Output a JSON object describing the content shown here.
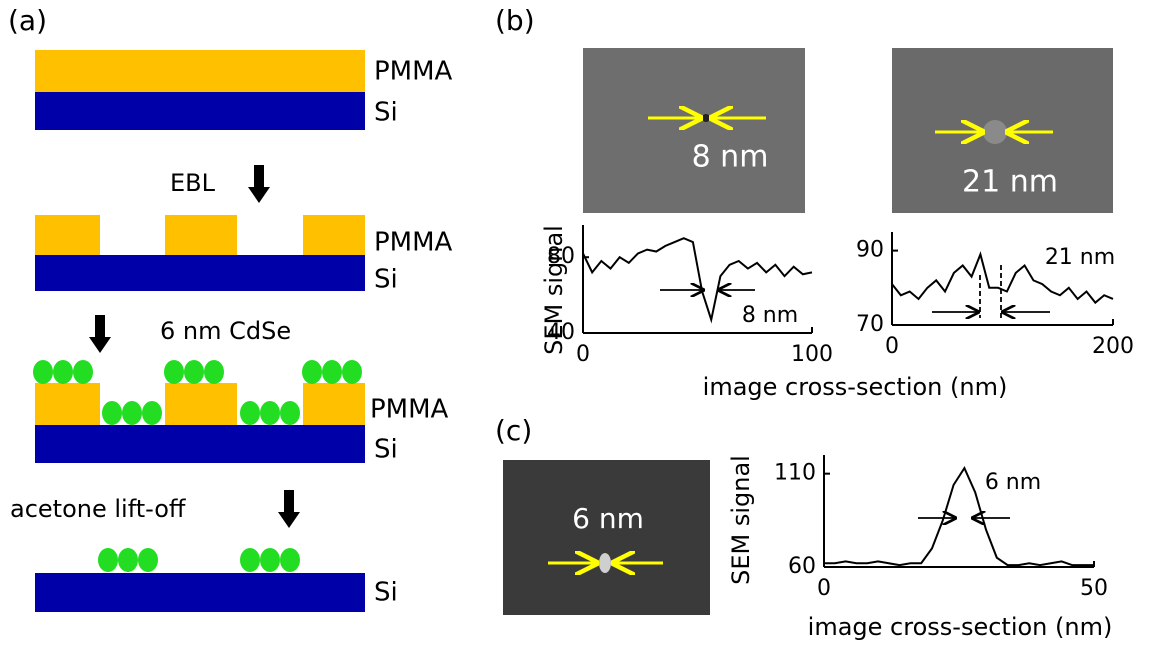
{
  "panel_labels": [
    "(a)",
    "(b)",
    "(c)"
  ],
  "diagram": {
    "stages": [
      {
        "layers": [
          "PMMA",
          "Si"
        ]
      },
      {
        "step": "EBL",
        "layers": [
          "PMMA",
          "Si"
        ]
      },
      {
        "step": "6 nm CdSe",
        "layers": [
          "PMMA",
          "Si"
        ]
      },
      {
        "step": "acetone lift-off",
        "layers": [
          "Si"
        ]
      }
    ]
  },
  "images": [
    {
      "label": "8 nm"
    },
    {
      "label": "21 nm"
    },
    {
      "label": "6 nm"
    }
  ],
  "chart_data": [
    {
      "type": "line",
      "ylabel": "SEM signal",
      "xlabel": "image cross-section (nm)",
      "annotation": "8 nm",
      "color": "#000000",
      "x": [
        0,
        4,
        8,
        12,
        16,
        20,
        24,
        28,
        32,
        36,
        40,
        44,
        48,
        52,
        56,
        60,
        64,
        68,
        72,
        76,
        80,
        84,
        88,
        92,
        96,
        100
      ],
      "series": [
        {
          "values": [
            82,
            72,
            78,
            74,
            80,
            77,
            82,
            84,
            83,
            86,
            88,
            90,
            88,
            62,
            47,
            70,
            76,
            78,
            74,
            77,
            72,
            76,
            70,
            75,
            71,
            72
          ],
          "color": "#000000"
        }
      ],
      "xlim": [
        0,
        100
      ],
      "xticks": [
        0,
        100
      ],
      "ylim": [
        40,
        97
      ],
      "yticks": [
        40,
        80
      ]
    },
    {
      "type": "line",
      "annotation": "21 nm",
      "x": [
        0,
        8,
        16,
        24,
        32,
        40,
        48,
        56,
        64,
        72,
        80,
        88,
        96,
        104,
        112,
        120,
        128,
        136,
        144,
        152,
        160,
        168,
        176,
        184,
        192,
        200
      ],
      "series": [
        {
          "values": [
            81,
            78,
            79,
            77,
            80,
            82,
            79,
            84,
            86,
            83,
            89,
            80,
            80,
            79,
            84,
            86,
            82,
            81,
            79,
            78,
            80,
            77,
            79,
            76,
            78,
            77
          ],
          "color": "#000000"
        }
      ],
      "xlim": [
        0,
        200
      ],
      "xticks": [
        0,
        200
      ],
      "ylim": [
        70,
        95
      ],
      "yticks": [
        70,
        90
      ]
    },
    {
      "type": "line",
      "ylabel": "SEM signal",
      "xlabel": "image cross-section (nm)",
      "annotation": "6 nm",
      "x": [
        0,
        2,
        4,
        6,
        8,
        10,
        12,
        14,
        16,
        18,
        20,
        22,
        24,
        26,
        28,
        30,
        32,
        34,
        36,
        38,
        40,
        42,
        44,
        46,
        48,
        50
      ],
      "series": [
        {
          "values": [
            62,
            62,
            63,
            62,
            62,
            63,
            62,
            61,
            62,
            62,
            70,
            85,
            104,
            113,
            100,
            80,
            65,
            61,
            61,
            62,
            61,
            62,
            63,
            61,
            61,
            61
          ],
          "color": "#000000"
        }
      ],
      "xlim": [
        0,
        50
      ],
      "xticks": [
        0,
        50
      ],
      "ylim": [
        60,
        120
      ],
      "yticks": [
        60,
        110
      ]
    }
  ]
}
